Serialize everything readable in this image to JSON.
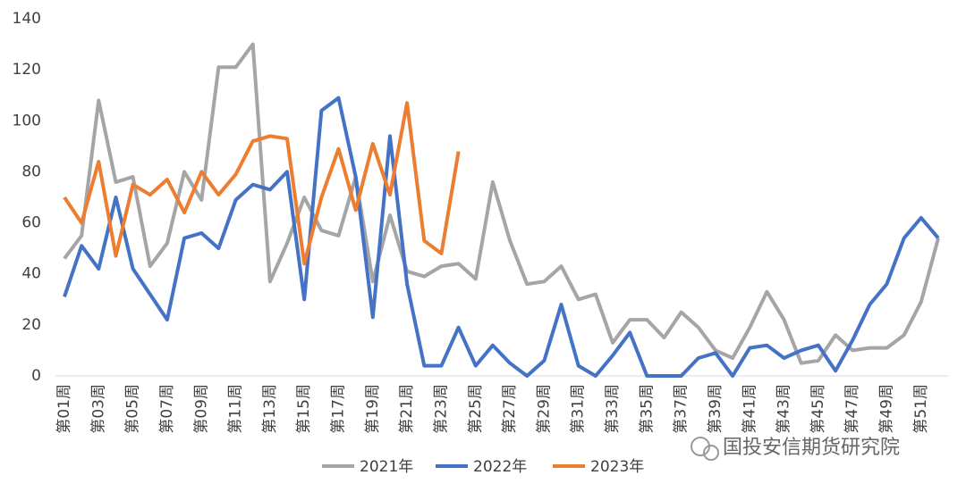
{
  "chart_data": {
    "type": "line",
    "categories": [
      "第01周",
      null,
      "第03周",
      null,
      "第05周",
      null,
      "第07周",
      null,
      "第09周",
      null,
      "第11周",
      null,
      "第13周",
      null,
      "第15周",
      null,
      "第17周",
      null,
      "第19周",
      null,
      "第21周",
      null,
      "第23周",
      null,
      "第25周",
      null,
      "第27周",
      null,
      "第29周",
      null,
      "第31周",
      null,
      "第33周",
      null,
      "第35周",
      null,
      "第37周",
      null,
      "第39周",
      null,
      "第41周",
      null,
      "第43周",
      null,
      "第45周",
      null,
      "第47周",
      null,
      "第49周",
      null,
      "第51周",
      null
    ],
    "series": [
      {
        "name": "2021年",
        "color": "#a5a5a5",
        "values": [
          46,
          55,
          108,
          76,
          78,
          43,
          52,
          80,
          69,
          121,
          121,
          130,
          37,
          52,
          70,
          57,
          55,
          78,
          37,
          63,
          41,
          39,
          43,
          44,
          38,
          76,
          53,
          36,
          37,
          43,
          30,
          32,
          13,
          22,
          22,
          15,
          25,
          19,
          10,
          7,
          19,
          33,
          22,
          5,
          6,
          16,
          10,
          11,
          11,
          16,
          29,
          54
        ]
      },
      {
        "name": "2022年",
        "color": "#4472c4",
        "values": [
          31,
          51,
          42,
          70,
          42,
          32,
          22,
          54,
          56,
          50,
          69,
          75,
          73,
          80,
          30,
          104,
          109,
          78,
          23,
          94,
          36,
          4,
          4,
          19,
          4,
          12,
          5,
          0,
          6,
          28,
          4,
          0,
          8,
          17,
          0,
          0,
          0,
          7,
          9,
          0,
          11,
          12,
          7,
          10,
          12,
          2,
          14,
          28,
          36,
          54,
          62,
          54
        ]
      },
      {
        "name": "2023年",
        "color": "#ed7d31",
        "values": [
          70,
          60,
          84,
          47,
          75,
          71,
          77,
          64,
          80,
          71,
          79,
          92,
          94,
          93,
          44,
          70,
          89,
          65,
          91,
          71,
          107,
          53,
          48,
          88,
          null,
          null,
          null,
          null,
          null,
          null,
          null,
          null,
          null,
          null,
          null,
          null,
          null,
          null,
          null,
          null,
          null,
          null,
          null,
          null,
          null,
          null,
          null,
          null,
          null,
          null,
          null,
          null
        ]
      }
    ],
    "ylim": [
      0,
      140
    ],
    "yticks": [
      0,
      20,
      40,
      60,
      80,
      100,
      120,
      140
    ],
    "grid": false,
    "legend": "bottom",
    "watermark": "国投安信期货研究院"
  }
}
